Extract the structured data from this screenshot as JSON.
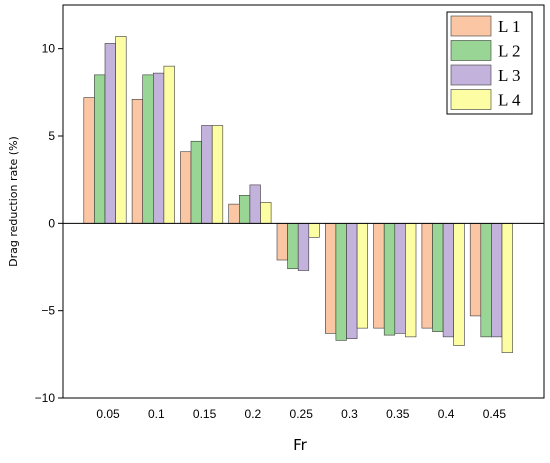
{
  "chart_data": {
    "type": "bar",
    "xlabel": "Fr",
    "ylabel": "Drag reduction rate (%)",
    "ylim": [
      -10,
      12.5
    ],
    "yticks": [
      -10,
      -5,
      0,
      5,
      10
    ],
    "yticks_text": [
      "−10",
      "−5",
      "0",
      "5",
      "10"
    ],
    "categories": [
      "0.05",
      "0.1",
      "0.15",
      "0.2",
      "0.25",
      "0.3",
      "0.35",
      "0.4",
      "0.45"
    ],
    "legend_position": "top-right",
    "series": [
      {
        "name": "L 1",
        "color": "#FBC6A4",
        "values": [
          7.2,
          7.1,
          4.1,
          1.1,
          -2.1,
          -6.3,
          -6.0,
          -6.0,
          -5.3
        ]
      },
      {
        "name": "L 2",
        "color": "#99D594",
        "values": [
          8.5,
          8.5,
          4.7,
          1.6,
          -2.6,
          -6.7,
          -6.4,
          -6.2,
          -6.5
        ]
      },
      {
        "name": "L 3",
        "color": "#C3B3DC",
        "values": [
          10.3,
          8.6,
          5.6,
          2.2,
          -2.7,
          -6.6,
          -6.3,
          -6.5,
          -6.5
        ]
      },
      {
        "name": "L 4",
        "color": "#FDFDA4",
        "values": [
          10.7,
          9.0,
          5.6,
          1.2,
          -0.8,
          -6.0,
          -6.5,
          -7.0,
          -7.4
        ]
      }
    ]
  }
}
